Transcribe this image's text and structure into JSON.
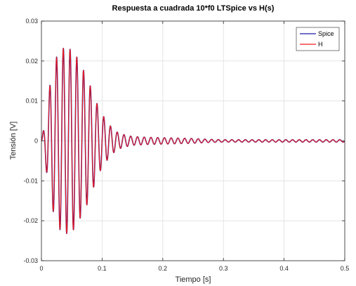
{
  "chart_data": {
    "type": "line",
    "title": "Respuesta a cuadrada 10*f0 LTSpice vs H(s)",
    "xlabel": "Tiempo [s]",
    "ylabel": "Tensión [V]",
    "xlim": [
      0,
      0.5
    ],
    "ylim": [
      -0.03,
      0.03
    ],
    "x_ticks": [
      0,
      0.1,
      0.2,
      0.3,
      0.4,
      0.5
    ],
    "x_tick_labels": [
      "0",
      "0.1",
      "0.2",
      "0.3",
      "0.4",
      "0.5"
    ],
    "y_ticks": [
      -0.03,
      -0.02,
      -0.01,
      0,
      0.01,
      0.02,
      0.03
    ],
    "y_tick_labels": [
      "-0.03",
      "-0.02",
      "-0.01",
      "0",
      "0.01",
      "0.02",
      "0.03"
    ],
    "grid": true,
    "legend_position": "top-right",
    "oscillation_frequency_hz": 90,
    "series": [
      {
        "name": "Spice",
        "color": "#1a1aa6",
        "envelope": {
          "t": [
            0,
            0.005,
            0.015,
            0.025,
            0.035,
            0.045,
            0.055,
            0.065,
            0.075,
            0.085,
            0.095,
            0.105,
            0.115,
            0.125,
            0.135,
            0.15,
            0.175,
            0.2,
            0.225,
            0.25,
            0.275,
            0.3,
            0.4,
            0.5
          ],
          "amplitude": [
            0,
            0.004,
            0.015,
            0.021,
            0.0232,
            0.0232,
            0.022,
            0.019,
            0.016,
            0.012,
            0.008,
            0.0055,
            0.0035,
            0.0022,
            0.0016,
            0.0011,
            0.0009,
            0.0008,
            0.0007,
            0.0006,
            0.0004,
            0.0003,
            0.0003,
            0.0003
          ]
        }
      },
      {
        "name": "H",
        "color": "#ee1c1c",
        "envelope": {
          "t": [
            0,
            0.005,
            0.015,
            0.025,
            0.035,
            0.045,
            0.055,
            0.065,
            0.075,
            0.085,
            0.095,
            0.105,
            0.115,
            0.125,
            0.135,
            0.15,
            0.175,
            0.2,
            0.225,
            0.25,
            0.275,
            0.3,
            0.4,
            0.5
          ],
          "amplitude": [
            0,
            0.004,
            0.015,
            0.021,
            0.0232,
            0.0232,
            0.022,
            0.019,
            0.016,
            0.012,
            0.008,
            0.0055,
            0.0035,
            0.0022,
            0.0016,
            0.0011,
            0.0009,
            0.0008,
            0.0007,
            0.0006,
            0.0004,
            0.0003,
            0.0003,
            0.0003
          ]
        }
      }
    ]
  }
}
